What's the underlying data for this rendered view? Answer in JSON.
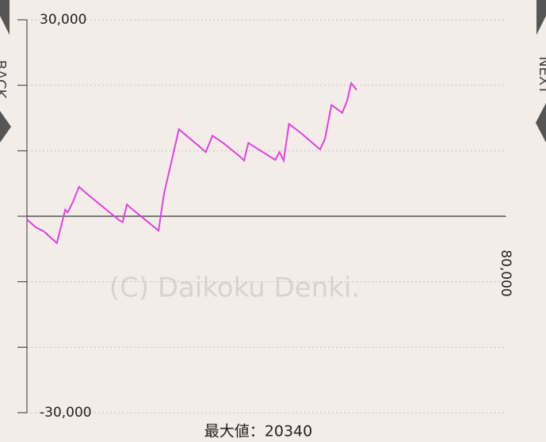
{
  "chart_data": {
    "type": "line",
    "x": [
      0,
      1500,
      2800,
      5000,
      6400,
      6800,
      7700,
      8700,
      9800,
      11400,
      15400,
      16000,
      16700,
      17300,
      22000,
      22900,
      25400,
      29900,
      31000,
      32800,
      35500,
      36300,
      37000,
      41500,
      42200,
      42900,
      43800,
      45800,
      49000,
      49800,
      50900,
      52700,
      53500,
      54200,
      55100
    ],
    "series": [
      {
        "color": "#dd44dd",
        "values": [
          -500,
          -1700,
          -2300,
          -4100,
          1000,
          600,
          2200,
          4500,
          3600,
          2400,
          -600,
          -900,
          1800,
          1300,
          -2200,
          3400,
          13300,
          9800,
          12300,
          11200,
          9200,
          8500,
          11200,
          8600,
          9800,
          8500,
          14100,
          12700,
          10200,
          11800,
          17000,
          15800,
          17600,
          20340,
          19300
        ]
      }
    ],
    "xlim": [
      0,
      80000
    ],
    "xticks": [
      {
        "value": 80000,
        "label": "80,000"
      }
    ],
    "ylim": [
      -30000,
      30000
    ],
    "yticks": [
      {
        "value": -30000,
        "label": "-30,000"
      },
      {
        "value": 30000,
        "label": "30,000"
      }
    ],
    "minor_yticks": [
      -20000,
      -10000,
      0,
      10000,
      20000
    ],
    "grid": true,
    "max_label": "最大値：20340",
    "watermark": "(C) Daikoku Denki.",
    "back_label": "BACK",
    "next_label": "NEXT"
  }
}
